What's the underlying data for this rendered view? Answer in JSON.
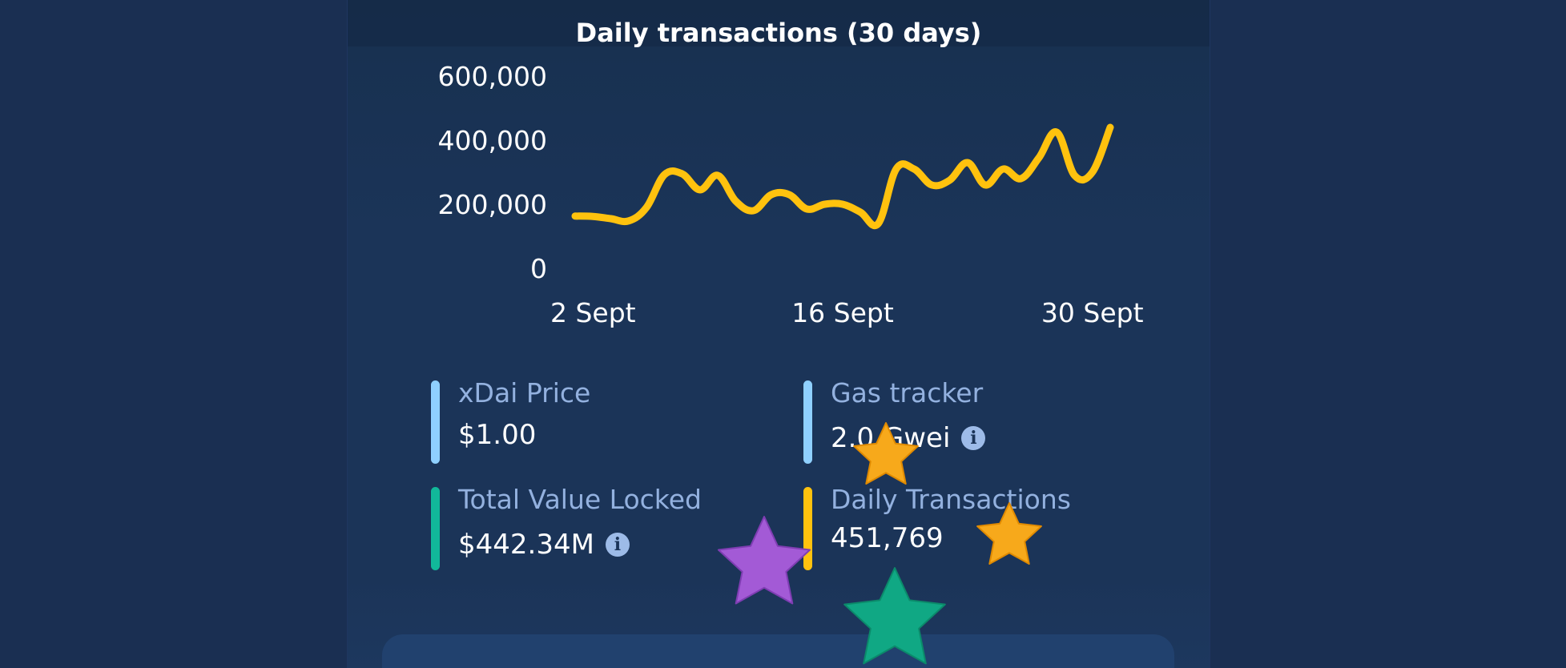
{
  "chart": {
    "title": "Daily transactions (30 days)"
  },
  "chart_data": {
    "type": "line",
    "title": "Daily transactions (30 days)",
    "xlabel": "",
    "ylabel": "",
    "ylim": [
      0,
      600000
    ],
    "yticks": [
      "600,000",
      "400,000",
      "200,000",
      "0"
    ],
    "xticks": [
      "2 Sept",
      "16 Sept",
      "30 Sept"
    ],
    "x": [
      "1 Sept",
      "2 Sept",
      "3 Sept",
      "4 Sept",
      "5 Sept",
      "6 Sept",
      "7 Sept",
      "8 Sept",
      "9 Sept",
      "10 Sept",
      "11 Sept",
      "12 Sept",
      "13 Sept",
      "14 Sept",
      "15 Sept",
      "16 Sept",
      "17 Sept",
      "18 Sept",
      "19 Sept",
      "20 Sept",
      "21 Sept",
      "22 Sept",
      "23 Sept",
      "24 Sept",
      "25 Sept",
      "26 Sept",
      "27 Sept",
      "28 Sept",
      "29 Sept",
      "30 Sept",
      "1 Oct"
    ],
    "series": [
      {
        "values": [
          163000,
          162000,
          155000,
          148000,
          190000,
          292000,
          295000,
          245000,
          290000,
          210000,
          180000,
          230000,
          230000,
          185000,
          200000,
          200000,
          175000,
          140000,
          310000,
          310000,
          260000,
          275000,
          330000,
          260000,
          310000,
          280000,
          345000,
          425000,
          290000,
          300000,
          440000
        ],
        "color": "#ffc20e"
      }
    ],
    "grid": false,
    "legend": "none"
  },
  "stats": [
    {
      "label": "xDai Price",
      "value": "$1.00",
      "color": "#8fd0ff",
      "info": false
    },
    {
      "label": "Gas tracker",
      "value": "2.0 Gwei",
      "color": "#8fd0ff",
      "info": true
    },
    {
      "label": "Total Value Locked",
      "value": "$442.34M",
      "color": "#11b89a",
      "info": true
    },
    {
      "label": "Daily Transactions",
      "value": "451,769",
      "color": "#ffc20e",
      "info": false
    }
  ],
  "icons": {
    "info": "info-icon",
    "stars": [
      "star-icon-orange",
      "star-icon-purple",
      "star-icon-orange",
      "star-icon-green"
    ]
  },
  "colors": {
    "background": "#1a2f52",
    "line": "#ffc20e",
    "star_orange": "#f7a91b",
    "star_purple": "#a35ad6",
    "star_green": "#10a884"
  }
}
